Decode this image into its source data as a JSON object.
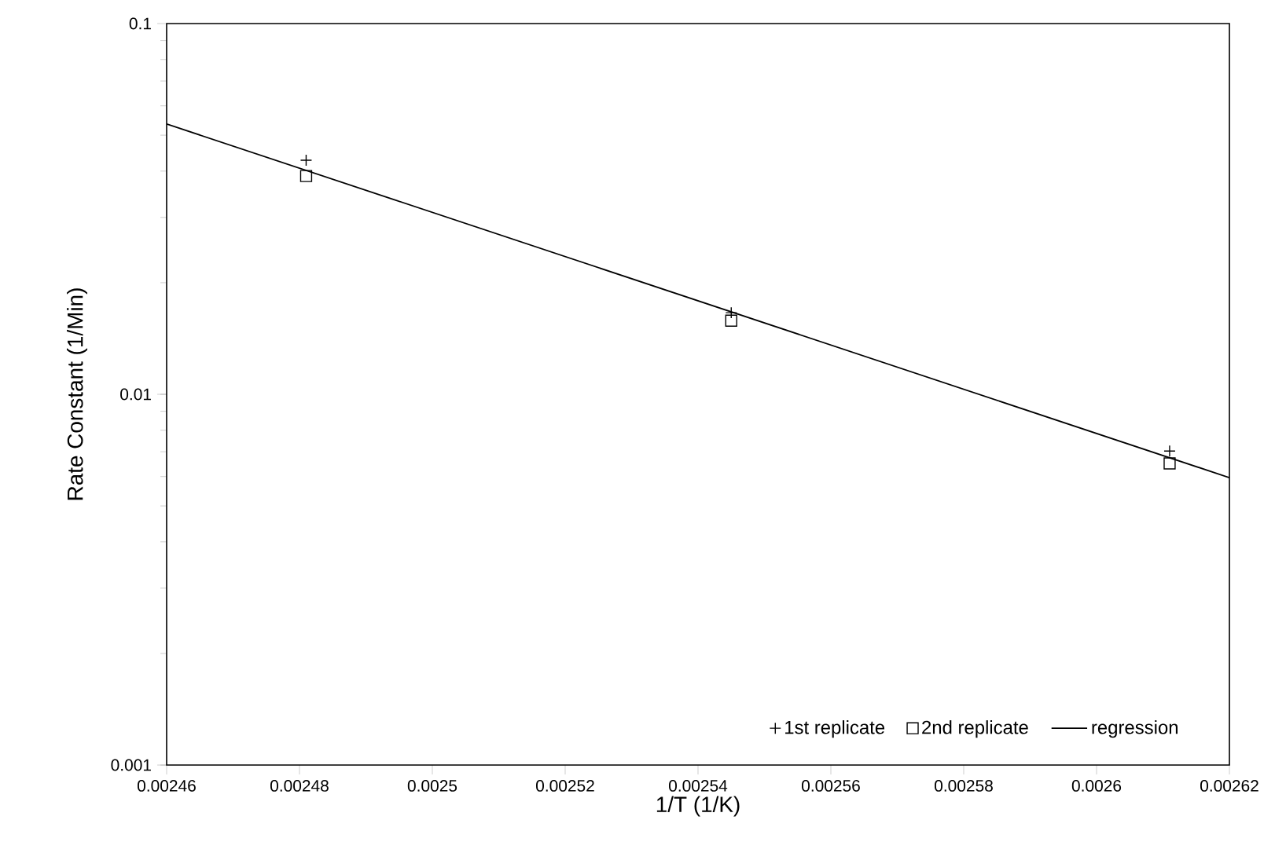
{
  "chart_data": {
    "type": "scatter",
    "xlabel": "1/T (1/K)",
    "ylabel": "Rate Constant (1/Min)",
    "log": "y",
    "legend": "bottom right",
    "xlim": [
      0.00246,
      0.00262
    ],
    "ylim": [
      0.001,
      0.1
    ],
    "xticks": [
      0.00246,
      0.00248,
      0.0025,
      0.00252,
      0.00254,
      0.00256,
      0.00258,
      0.0026,
      0.00262
    ],
    "yticks": [
      0.001,
      0.01,
      0.1
    ],
    "series": [
      {
        "name": "1st replicate",
        "marker": "cross",
        "color": "#000000",
        "x": [
          0.002481,
          0.002545,
          0.002611
        ],
        "values": [
          0.0428,
          0.0166,
          0.00703
        ]
      },
      {
        "name": "2nd replicate",
        "marker": "square",
        "color": "#000000",
        "x": [
          0.002481,
          0.002545,
          0.002611
        ],
        "values": [
          0.0388,
          0.0158,
          0.00651
        ]
      },
      {
        "name": "regression",
        "type": "line",
        "marker": "none",
        "line_style": "solid",
        "color": "#000000",
        "x": [
          0.00246,
          0.00262
        ],
        "values": [
          0.0536,
          0.00596
        ]
      }
    ]
  }
}
